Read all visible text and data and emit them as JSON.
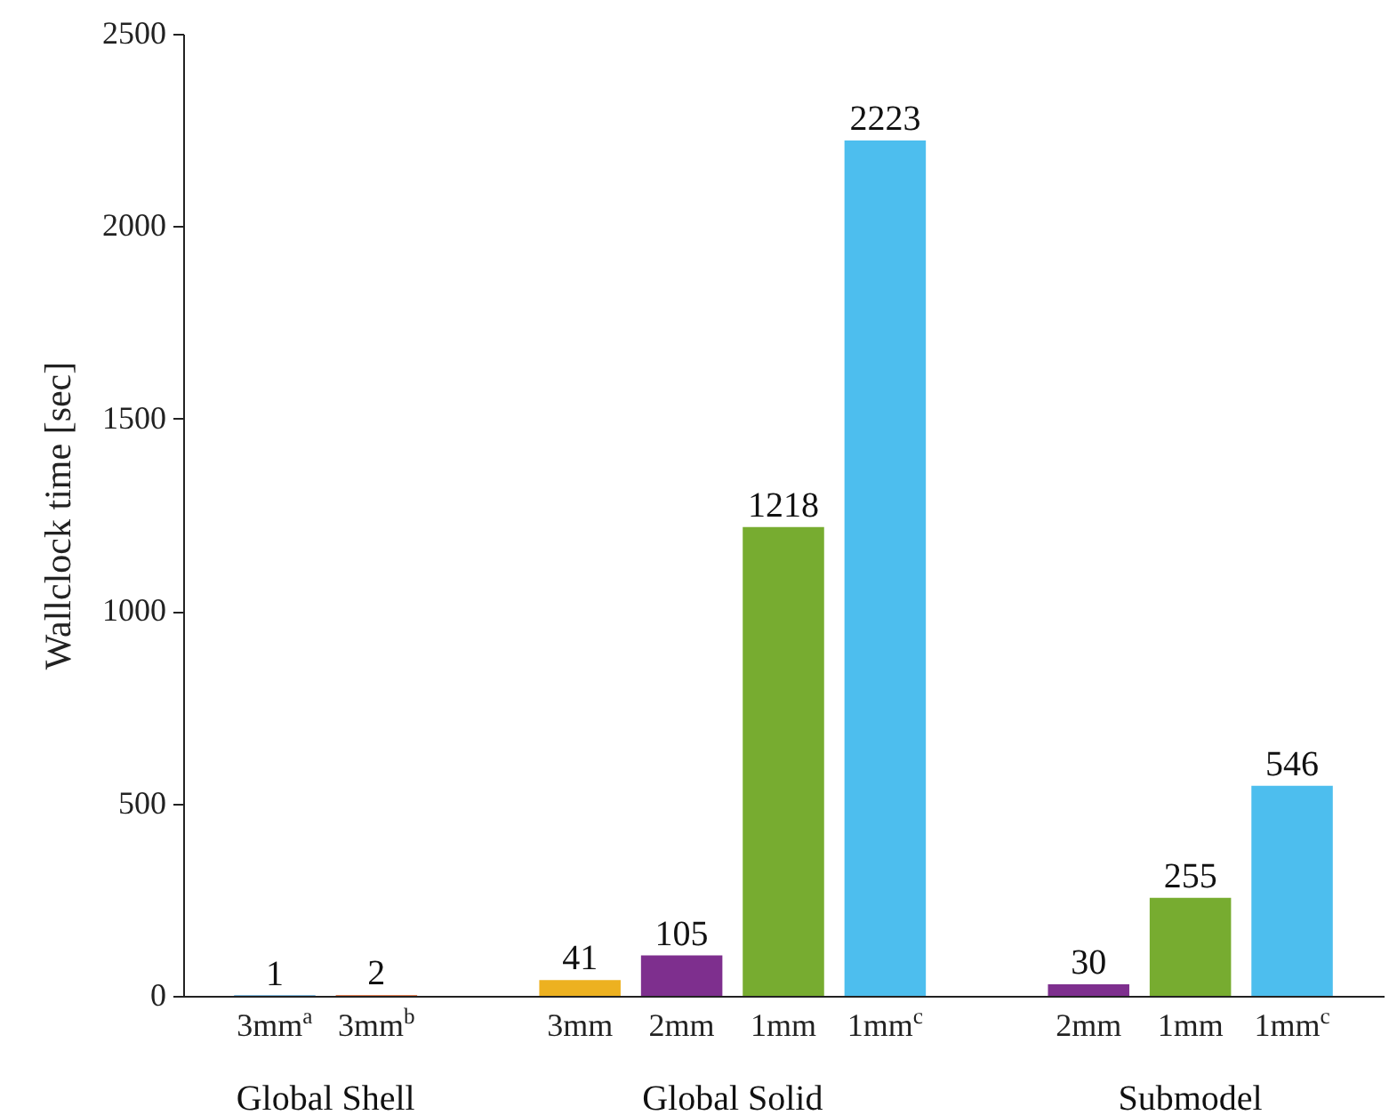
{
  "chart_data": {
    "type": "bar",
    "ylabel": "Wallclock time [sec]",
    "categories": [
      "3mm$^{a}$",
      "3mm$^{b}$",
      null,
      "3mm",
      "2mm",
      "1mm",
      "1mm$^{c}$",
      null,
      "2mm",
      "1mm",
      "1mm$^{c}$"
    ],
    "values": [
      1,
      2,
      null,
      41,
      105,
      1218,
      2223,
      null,
      30,
      255,
      546
    ],
    "colors": [
      "#0072bd",
      "#d95319",
      null,
      "#edb120",
      "#7e2f8e",
      "#77ac30",
      "#4dbeee",
      null,
      "#7e2f8e",
      "#77ac30",
      "#4dbeee"
    ],
    "ylim": [
      0,
      2500
    ],
    "yticks": [
      0,
      500,
      1000,
      1500,
      2000,
      2500
    ],
    "data_labels": true,
    "grid": false,
    "annotations": [
      "Global Shell",
      "Global Solid",
      "Submodel"
    ]
  }
}
